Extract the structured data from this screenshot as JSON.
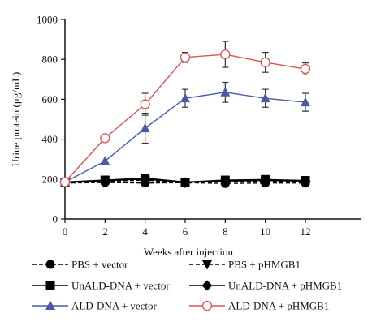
{
  "chart_data": {
    "type": "line",
    "ylabel": "Urine protein (μg/mL)",
    "xlabel": "Weeks after injection",
    "x": [
      0,
      2,
      4,
      6,
      8,
      10,
      12
    ],
    "xlim": [
      0,
      12
    ],
    "ylim": [
      0,
      1000
    ],
    "xticks": [
      "0",
      "2",
      "4",
      "6",
      "8",
      "10",
      "12"
    ],
    "yticks": [
      "0",
      "200",
      "400",
      "600",
      "800",
      "1000"
    ],
    "grid": false,
    "legend_position": "bottom",
    "series": [
      {
        "name": "PBS + vector",
        "marker": "circle-filled",
        "line": "dashed",
        "color": "#000000",
        "values": [
          180,
          183,
          180,
          182,
          178,
          180,
          180
        ],
        "errors": [
          0,
          0,
          10,
          0,
          0,
          0,
          0
        ]
      },
      {
        "name": "PBS + pHMGB1",
        "marker": "triangle-down-filled",
        "line": "dashed",
        "color": "#000000",
        "values": [
          180,
          188,
          195,
          180,
          187,
          190,
          185
        ],
        "errors": [
          0,
          0,
          0,
          0,
          0,
          0,
          0
        ]
      },
      {
        "name": "UnALD-DNA + vector",
        "marker": "square-filled",
        "line": "solid",
        "color": "#000000",
        "values": [
          185,
          195,
          205,
          185,
          195,
          198,
          193
        ],
        "errors": [
          0,
          0,
          15,
          0,
          0,
          0,
          0
        ]
      },
      {
        "name": "UnALD-DNA + pHMGB1",
        "marker": "diamond-filled",
        "line": "solid",
        "color": "#000000",
        "values": [
          182,
          192,
          200,
          183,
          190,
          193,
          190
        ],
        "errors": [
          0,
          0,
          0,
          0,
          0,
          0,
          0
        ]
      },
      {
        "name": "ALD-DNA + vector",
        "marker": "triangle-up-filled",
        "line": "solid",
        "color": "#4a5aa8",
        "values": [
          185,
          290,
          455,
          605,
          635,
          605,
          585
        ],
        "errors": [
          0,
          0,
          75,
          45,
          50,
          45,
          45
        ]
      },
      {
        "name": "ALD-DNA + pHMGB1",
        "marker": "circle-open",
        "line": "solid",
        "color": "#d9534f",
        "values": [
          185,
          405,
          575,
          810,
          825,
          785,
          752
        ],
        "errors": [
          0,
          0,
          55,
          25,
          65,
          50,
          30
        ]
      }
    ]
  }
}
